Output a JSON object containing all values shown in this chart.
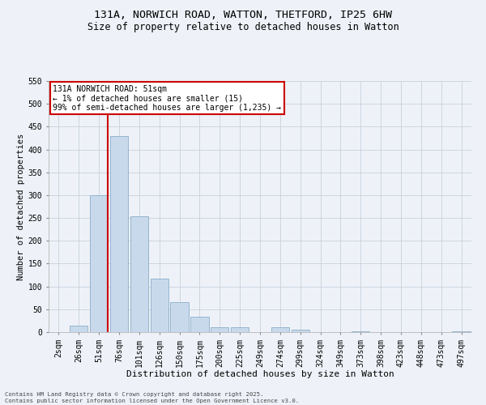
{
  "title_line1": "131A, NORWICH ROAD, WATTON, THETFORD, IP25 6HW",
  "title_line2": "Size of property relative to detached houses in Watton",
  "xlabel": "Distribution of detached houses by size in Watton",
  "ylabel": "Number of detached properties",
  "categories": [
    "2sqm",
    "26sqm",
    "51sqm",
    "76sqm",
    "101sqm",
    "126sqm",
    "150sqm",
    "175sqm",
    "200sqm",
    "225sqm",
    "249sqm",
    "274sqm",
    "299sqm",
    "324sqm",
    "349sqm",
    "373sqm",
    "398sqm",
    "423sqm",
    "448sqm",
    "473sqm",
    "497sqm"
  ],
  "values": [
    0,
    15,
    300,
    430,
    253,
    117,
    65,
    33,
    10,
    10,
    0,
    10,
    5,
    0,
    0,
    2,
    0,
    0,
    0,
    0,
    2
  ],
  "bar_color": "#c9d9ec",
  "bar_edge_color": "#8aaec8",
  "red_line_index": 2,
  "annotation_title": "131A NORWICH ROAD: 51sqm",
  "annotation_line2": "← 1% of detached houses are smaller (15)",
  "annotation_line3": "99% of semi-detached houses are larger (1,235) →",
  "annotation_box_color": "#ffffff",
  "annotation_border_color": "#cc0000",
  "red_line_color": "#cc0000",
  "ylim": [
    0,
    550
  ],
  "yticks": [
    0,
    50,
    100,
    150,
    200,
    250,
    300,
    350,
    400,
    450,
    500,
    550
  ],
  "footer_line1": "Contains HM Land Registry data © Crown copyright and database right 2025.",
  "footer_line2": "Contains public sector information licensed under the Open Government Licence v3.0.",
  "background_color": "#eef2f8",
  "grid_color": "#c8d0dc",
  "title_fontsize": 9.5,
  "subtitle_fontsize": 8.5,
  "tick_fontsize": 7,
  "ylabel_fontsize": 7.5,
  "xlabel_fontsize": 8
}
